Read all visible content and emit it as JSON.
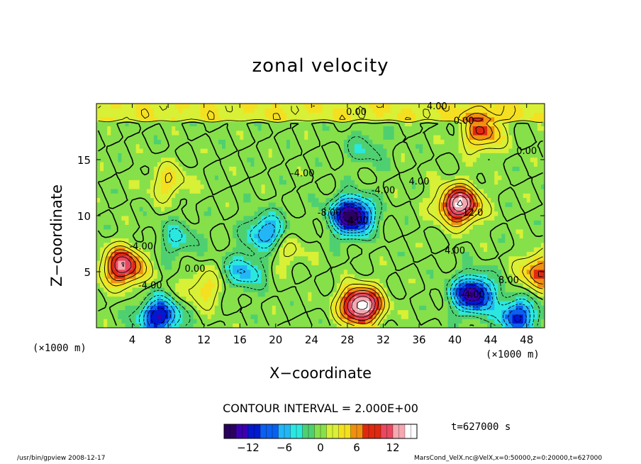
{
  "chart_data": {
    "type": "heatmap",
    "title": "zonal velocity",
    "xlabel": "X−coordinate",
    "ylabel": "Z−coordinate",
    "x_unit_left": "(×1000 m)",
    "x_unit_right": "(×1000 m)",
    "xlim": [
      0,
      50
    ],
    "ylim": [
      0,
      20
    ],
    "x_ticks": [
      4,
      8,
      12,
      16,
      20,
      24,
      28,
      32,
      36,
      40,
      44,
      48
    ],
    "y_ticks": [
      5,
      10,
      15
    ],
    "contour_interval": "CONTOUR INTERVAL = 2.000E+00",
    "contour_labels": [
      "4.00",
      "0.00",
      "0.00",
      "0.00",
      "-4.00",
      "-4.00",
      "-8.00",
      "-4.00",
      "4.00",
      "12.0",
      "4.00",
      "-4.00",
      "8.00",
      "-4.00",
      "0.00",
      "-4.00"
    ],
    "colorbar": {
      "min": -16,
      "max": 16,
      "tick_values": [
        -12,
        -6,
        0,
        6,
        12
      ],
      "tick_labels": [
        "−12",
        "−6",
        "0",
        "6",
        "12"
      ]
    },
    "features": [
      {
        "x": 28.5,
        "z": 10.0,
        "value": -16
      },
      {
        "x": 19.0,
        "z": 8.5,
        "value": -8
      },
      {
        "x": 9.0,
        "z": 8.0,
        "value": -4
      },
      {
        "x": 16.5,
        "z": 5.0,
        "value": -6
      },
      {
        "x": 42.0,
        "z": 3.0,
        "value": -14
      },
      {
        "x": 7.0,
        "z": 1.0,
        "value": -12
      },
      {
        "x": 47.0,
        "z": 1.0,
        "value": -10
      },
      {
        "x": 3.0,
        "z": 5.5,
        "value": 12
      },
      {
        "x": 29.5,
        "z": 2.0,
        "value": 16
      },
      {
        "x": 40.5,
        "z": 11.0,
        "value": 14
      },
      {
        "x": 43.0,
        "z": 17.5,
        "value": 8
      },
      {
        "x": 49.5,
        "z": 5.0,
        "value": 8
      },
      {
        "x": 21.0,
        "z": 7.0,
        "value": 3
      },
      {
        "x": 8.0,
        "z": 13.0,
        "value": 4
      },
      {
        "x": 30.0,
        "z": 16.0,
        "value": -3
      },
      {
        "x": 12.0,
        "z": 3.5,
        "value": 4
      }
    ],
    "colormap": [
      "#2a0060",
      "#3a00b0",
      "#0018d0",
      "#0a60f0",
      "#22b6f6",
      "#2ae8e0",
      "#4fd070",
      "#86e04a",
      "#d8f036",
      "#f4e020",
      "#f09010",
      "#e02810",
      "#e84860",
      "#f4a8b0",
      "#ffffff"
    ]
  },
  "time_label": "t=627000 s",
  "footer": {
    "left": "/usr/bin/gpview  2008-12-17",
    "right": "MarsCond_VelX.nc@VelX,x=0:50000,z=0:20000,t=627000"
  }
}
